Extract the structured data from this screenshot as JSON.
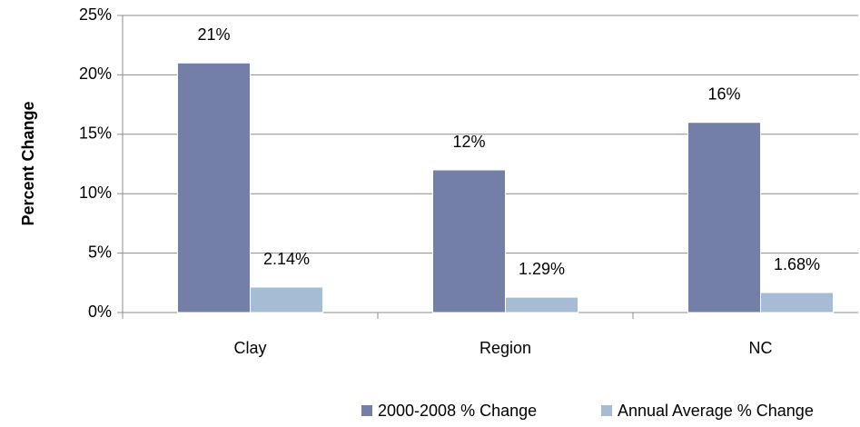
{
  "chart_data": {
    "type": "bar",
    "y_label": "Percent Change",
    "categories": [
      "Clay",
      "Region",
      "NC"
    ],
    "series": [
      {
        "name": "2000-2008 % Change",
        "color": "#737fa6",
        "values": [
          21,
          12,
          16
        ],
        "value_labels": [
          "21%",
          "12%",
          "16%"
        ]
      },
      {
        "name": "Annual Average % Change",
        "color": "#a6bcd4",
        "values": [
          2.14,
          1.29,
          1.68
        ],
        "value_labels": [
          "2.14%",
          "1.29%",
          "1.68%"
        ]
      }
    ],
    "ylim": [
      0,
      25
    ],
    "yticks": [
      {
        "value": 0,
        "label": "0%"
      },
      {
        "value": 5,
        "label": "5%"
      },
      {
        "value": 10,
        "label": "10%"
      },
      {
        "value": 15,
        "label": "15%"
      },
      {
        "value": 20,
        "label": "20%"
      },
      {
        "value": 25,
        "label": "25%"
      }
    ],
    "grid": true,
    "legend": "bottom"
  }
}
